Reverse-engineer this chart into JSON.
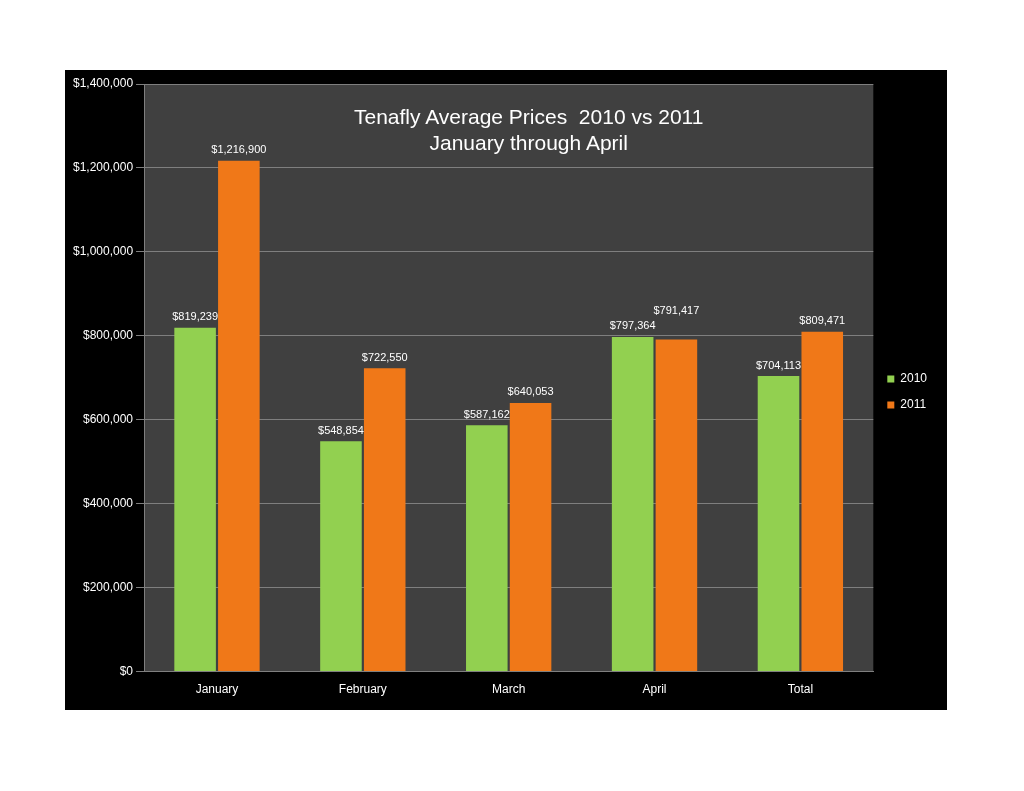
{
  "chart_data": {
    "type": "bar",
    "title": "Tenafly Average Prices  2010 vs 2011",
    "subtitle": "January through April",
    "categories": [
      "January",
      "February",
      "March",
      "April",
      "Total"
    ],
    "series": [
      {
        "name": "2010",
        "color": "#92d050",
        "values": [
          819239,
          548854,
          587162,
          797364,
          704113
        ],
        "value_labels": [
          "$819,239",
          "$548,854",
          "$587,162",
          "$797,364",
          "$704,113"
        ]
      },
      {
        "name": "2011",
        "color": "#f07818",
        "values": [
          1216900,
          722550,
          640053,
          791417,
          809471
        ],
        "value_labels": [
          "$1,216,900",
          "$722,550",
          "$640,053",
          "$791,417",
          "$809,471"
        ]
      }
    ],
    "ylim": [
      0,
      1400000
    ],
    "yticks": [
      {
        "value": 0,
        "label": "$0"
      },
      {
        "value": 200000,
        "label": "$200,000"
      },
      {
        "value": 400000,
        "label": "$400,000"
      },
      {
        "value": 600000,
        "label": "$600,000"
      },
      {
        "value": 800000,
        "label": "$800,000"
      },
      {
        "value": 1000000,
        "label": "$1,000,000"
      },
      {
        "value": 1200000,
        "label": "$1,200,000"
      },
      {
        "value": 1400000,
        "label": "$1,400,000"
      }
    ],
    "grid": "y",
    "legend": "right"
  }
}
